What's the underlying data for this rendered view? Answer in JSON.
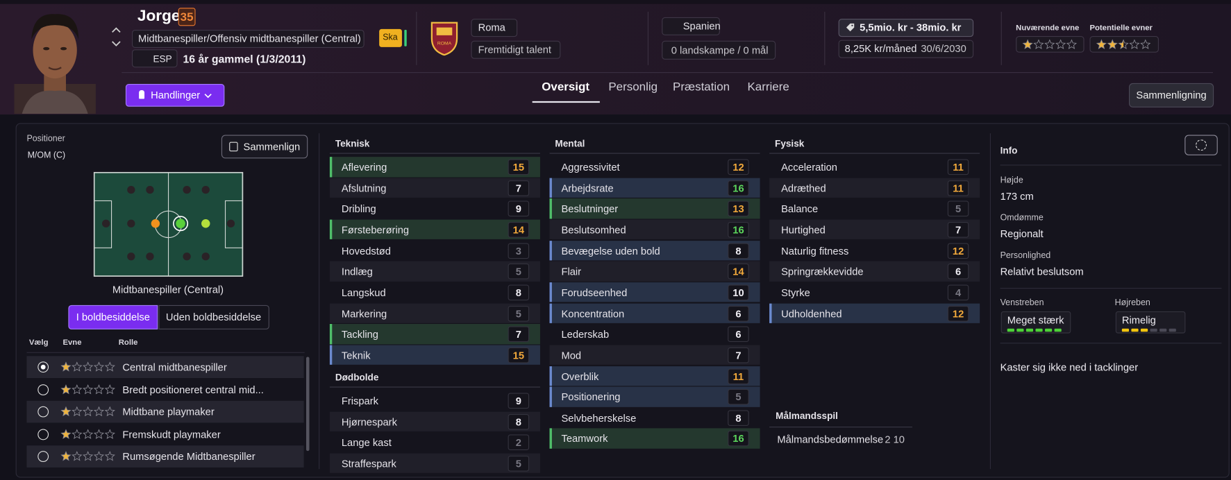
{
  "header": {
    "name": "Jorge",
    "rating": 35,
    "position": "Midtbanespiller/Offensiv midtbanespiller (Central)",
    "nation": "ESP",
    "age": "16 år gammel (1/3/2011)",
    "status": "Ska",
    "club": "Roma",
    "club_role": "Fremtidigt talent",
    "country": "Spanien",
    "caps": "0 landskampe / 0 mål",
    "value": "5,5mio. kr - 38mio. kr",
    "wage": "8,25K kr/måned",
    "contract": "30/6/2030",
    "current_ability": {
      "label": "Nuværende evne",
      "stars": 1
    },
    "potential_ability": {
      "label": "Potentielle evner",
      "stars": 2.5
    },
    "actions": "Handlinger",
    "compare": "Sammenligning"
  },
  "tabs": [
    "Oversigt",
    "Personlig",
    "Præstation",
    "Karriere"
  ],
  "positions": {
    "label": "Positioner",
    "value": "M/OM (C)",
    "compare": "Sammenlign",
    "role_position": "Midtbanespiller (Central)",
    "toggles": [
      "I boldbesiddelse",
      "Uden boldbesiddelse"
    ],
    "headers": [
      "Vælg",
      "Evne",
      "Rolle"
    ],
    "roles": [
      {
        "stars": 1,
        "name": "Central midtbanespiller"
      },
      {
        "stars": 1,
        "name": "Bredt positioneret central mid..."
      },
      {
        "stars": 1,
        "name": "Midtbane playmaker"
      },
      {
        "stars": 1,
        "name": "Fremskudt playmaker"
      },
      {
        "stars": 1,
        "name": "Rumsøgende Midtbanespiller"
      }
    ]
  },
  "attributes": [
    {
      "title": "Teknisk",
      "items": [
        {
          "name": "Aflevering",
          "value": 15,
          "highlight": "green"
        },
        {
          "name": "Afslutning",
          "value": 7
        },
        {
          "name": "Dribling",
          "value": 9
        },
        {
          "name": "Førsteberøring",
          "value": 14,
          "highlight": "green"
        },
        {
          "name": "Hovedstød",
          "value": 3
        },
        {
          "name": "Indlæg",
          "value": 5
        },
        {
          "name": "Langskud",
          "value": 8
        },
        {
          "name": "Markering",
          "value": 5
        },
        {
          "name": "Tackling",
          "value": 7,
          "highlight": "green"
        },
        {
          "name": "Teknik",
          "value": 15,
          "highlight": "blue"
        }
      ]
    },
    {
      "title": "Dødbolde",
      "items": [
        {
          "name": "Frispark",
          "value": 9
        },
        {
          "name": "Hjørnespark",
          "value": 8
        },
        {
          "name": "Lange kast",
          "value": 2
        },
        {
          "name": "Straffespark",
          "value": 5
        }
      ]
    },
    {
      "title": "Mental",
      "items": [
        {
          "name": "Aggressivitet",
          "value": 12
        },
        {
          "name": "Arbejdsrate",
          "value": 16,
          "highlight": "blue"
        },
        {
          "name": "Beslutninger",
          "value": 13,
          "highlight": "green"
        },
        {
          "name": "Beslutsomhed",
          "value": 16
        },
        {
          "name": "Bevægelse uden bold",
          "value": 8,
          "highlight": "blue"
        },
        {
          "name": "Flair",
          "value": 14
        },
        {
          "name": "Forudseenhed",
          "value": 10,
          "highlight": "blue"
        },
        {
          "name": "Koncentration",
          "value": 6,
          "highlight": "blue"
        },
        {
          "name": "Lederskab",
          "value": 6
        },
        {
          "name": "Mod",
          "value": 7
        },
        {
          "name": "Overblik",
          "value": 11,
          "highlight": "blue"
        },
        {
          "name": "Positionering",
          "value": 5,
          "highlight": "blue"
        },
        {
          "name": "Selvbeherskelse",
          "value": 8
        },
        {
          "name": "Teamwork",
          "value": 16,
          "highlight": "green"
        }
      ]
    },
    {
      "title": "Fysisk",
      "items": [
        {
          "name": "Acceleration",
          "value": 11
        },
        {
          "name": "Adræthed",
          "value": 11
        },
        {
          "name": "Balance",
          "value": 5
        },
        {
          "name": "Hurtighed",
          "value": 7
        },
        {
          "name": "Naturlig fitness",
          "value": 12
        },
        {
          "name": "Springrækkevidde",
          "value": 6
        },
        {
          "name": "Styrke",
          "value": 4
        },
        {
          "name": "Udholdenhed",
          "value": 12,
          "highlight": "blue"
        }
      ]
    }
  ],
  "goalkeeping": {
    "title": "Målmandsspil",
    "name": "Målmandsbedømmelse",
    "value": "2 10"
  },
  "info": {
    "title": "Info",
    "fields": [
      {
        "label": "Højde",
        "value": "173 cm"
      },
      {
        "label": "Omdømme",
        "value": "Regionalt"
      },
      {
        "label": "Personlighed",
        "value": "Relativt beslutsom"
      }
    ],
    "feet": [
      {
        "label": "Venstreben",
        "value": "Meget stærk",
        "level": 6,
        "color": "#4cd137"
      },
      {
        "label": "Højreben",
        "value": "Rimelig",
        "level": 3,
        "color": "#f1c40f"
      }
    ],
    "note": "Kaster sig ikke ned i tacklinger"
  }
}
